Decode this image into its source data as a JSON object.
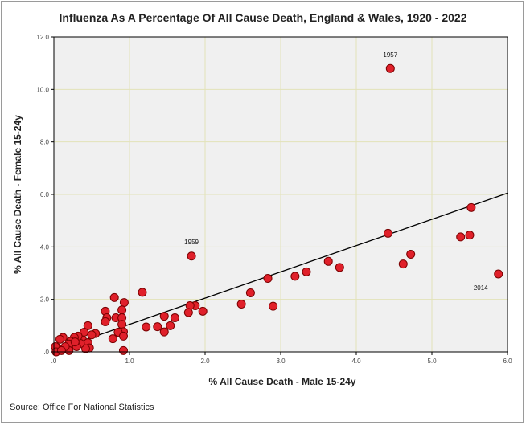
{
  "title": "Influenza As A Percentage Of All Cause Death, England & Wales, 1920 - 2022",
  "source": "Source: Office For National Statistics",
  "chart_data": {
    "type": "scatter",
    "title": "Influenza As A Percentage Of All Cause Death, England & Wales, 1920 - 2022",
    "xlabel": "% All Cause Death - Male 15-24y",
    "ylabel": "% All Cause Death - Female 15-24y",
    "xlim": [
      0,
      6.0
    ],
    "ylim": [
      0,
      12.0
    ],
    "xticks": [
      ".0",
      "1.0",
      "2.0",
      "3.0",
      "4.0",
      "5.0",
      "6.0"
    ],
    "yticks": [
      ".0",
      "2.0",
      "4.0",
      "6.0",
      "8.0",
      "10.0",
      "12.0"
    ],
    "grid": true,
    "point_color": "#e0202a",
    "background": "#f0f0f0",
    "gridline_color": "#e2e2b8",
    "points": [
      [
        4.45,
        10.8
      ],
      [
        1.82,
        3.65
      ],
      [
        5.88,
        2.97
      ],
      [
        5.52,
        5.5
      ],
      [
        5.5,
        4.45
      ],
      [
        5.38,
        4.38
      ],
      [
        4.42,
        4.52
      ],
      [
        4.72,
        3.72
      ],
      [
        4.62,
        3.35
      ],
      [
        3.63,
        3.45
      ],
      [
        3.78,
        3.22
      ],
      [
        3.34,
        3.05
      ],
      [
        3.19,
        2.88
      ],
      [
        2.83,
        2.8
      ],
      [
        2.9,
        1.74
      ],
      [
        2.6,
        2.25
      ],
      [
        2.48,
        1.82
      ],
      [
        1.97,
        1.55
      ],
      [
        1.87,
        1.76
      ],
      [
        1.8,
        1.76
      ],
      [
        1.78,
        1.5
      ],
      [
        1.6,
        1.3
      ],
      [
        1.54,
        1.0
      ],
      [
        1.46,
        1.36
      ],
      [
        1.46,
        0.76
      ],
      [
        1.37,
        0.96
      ],
      [
        1.22,
        0.95
      ],
      [
        1.17,
        2.27
      ],
      [
        0.93,
        1.88
      ],
      [
        0.8,
        2.07
      ],
      [
        0.9,
        1.6
      ],
      [
        0.82,
        1.3
      ],
      [
        0.9,
        1.3
      ],
      [
        0.9,
        1.05
      ],
      [
        0.92,
        0.77
      ],
      [
        0.85,
        0.75
      ],
      [
        0.92,
        0.6
      ],
      [
        0.78,
        0.5
      ],
      [
        0.92,
        0.05
      ],
      [
        0.68,
        1.55
      ],
      [
        0.7,
        1.3
      ],
      [
        0.68,
        1.15
      ],
      [
        0.55,
        0.7
      ],
      [
        0.5,
        0.65
      ],
      [
        0.45,
        1.0
      ],
      [
        0.4,
        0.75
      ],
      [
        0.38,
        0.45
      ],
      [
        0.45,
        0.35
      ],
      [
        0.47,
        0.15
      ],
      [
        0.42,
        0.12
      ],
      [
        0.35,
        0.32
      ],
      [
        0.32,
        0.6
      ],
      [
        0.3,
        0.2
      ],
      [
        0.27,
        0.55
      ],
      [
        0.22,
        0.4
      ],
      [
        0.2,
        0.3
      ],
      [
        0.2,
        0.05
      ],
      [
        0.15,
        0.2
      ],
      [
        0.12,
        0.55
      ],
      [
        0.08,
        0.48
      ],
      [
        0.05,
        0.15
      ],
      [
        0.03,
        0.08
      ],
      [
        0.02,
        0.2
      ],
      [
        0.03,
        0.0
      ],
      [
        0.1,
        0.05
      ],
      [
        0.28,
        0.38
      ]
    ],
    "fit_line": {
      "x": [
        0,
        6.0
      ],
      "y": [
        0.05,
        6.05
      ]
    },
    "annotations": [
      {
        "label": "1957",
        "x": 4.45,
        "y": 10.8
      },
      {
        "label": "1959",
        "x": 1.82,
        "y": 3.65
      },
      {
        "label": "2014",
        "x": 5.88,
        "y": 2.97
      }
    ]
  }
}
